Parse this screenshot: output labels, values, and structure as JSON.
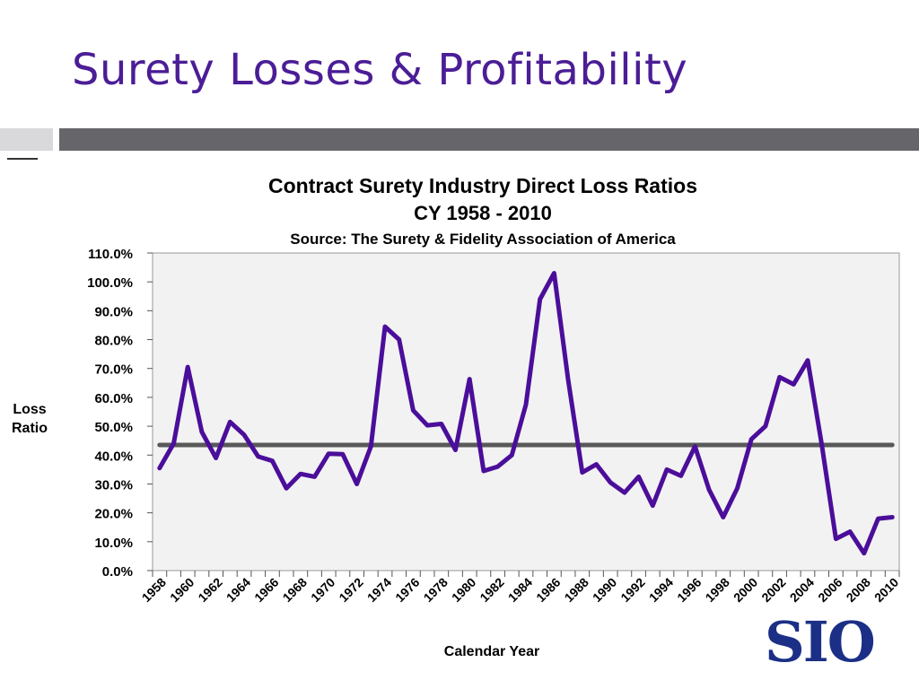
{
  "slide": {
    "title": "Surety Losses & Profitability"
  },
  "logo": {
    "text": "SIO",
    "color": "#1b2f86"
  },
  "colors": {
    "title": "#4b1d96",
    "series": "#4b0e9a",
    "average_line": "#595959",
    "plot_bg": "#f2f2f2"
  },
  "chart_data": {
    "type": "line",
    "title": "Contract Surety Industry Direct Loss Ratios",
    "subtitle": "CY 1958 - 2010",
    "source": "Source: The Surety & Fidelity Association of America",
    "xlabel": "Calendar Year",
    "ylabel": "Loss Ratio",
    "ylim": [
      0,
      110
    ],
    "y_ticks": [
      "0.0%",
      "10.0%",
      "20.0%",
      "30.0%",
      "40.0%",
      "50.0%",
      "60.0%",
      "70.0%",
      "80.0%",
      "90.0%",
      "100.0%",
      "110.0%"
    ],
    "x_tick_labels": [
      "1958",
      "1960",
      "1962",
      "1964",
      "1966",
      "1968",
      "1970",
      "1972",
      "1974",
      "1976",
      "1978",
      "1980",
      "1982",
      "1984",
      "1986",
      "1988",
      "1990",
      "1992",
      "1994",
      "1996",
      "1998",
      "2000",
      "2002",
      "2004",
      "2006",
      "2008",
      "2010"
    ],
    "grid": false,
    "series": [
      {
        "x": [
          1958,
          1959,
          1960,
          1961,
          1962,
          1963,
          1964,
          1965,
          1966,
          1967,
          1968,
          1969,
          1970,
          1971,
          1972,
          1973,
          1974,
          1975,
          1976,
          1977,
          1978,
          1979,
          1980,
          1981,
          1982,
          1983,
          1984,
          1985,
          1986,
          1987,
          1988,
          1989,
          1990,
          1991,
          1992,
          1993,
          1994,
          1995,
          1996,
          1997,
          1998,
          1999,
          2000,
          2001,
          2002,
          2003,
          2004,
          2005,
          2006,
          2007,
          2008,
          2009,
          2010
        ],
        "values": [
          35.5,
          44.0,
          70.5,
          48.0,
          39.0,
          51.5,
          47.0,
          39.5,
          38.0,
          28.5,
          33.5,
          32.5,
          40.5,
          40.3,
          30.0,
          43.0,
          84.5,
          80.0,
          55.5,
          50.3,
          50.8,
          41.8,
          66.3,
          34.5,
          36.0,
          40.0,
          57.5,
          94.0,
          103.0,
          66.0,
          34.0,
          36.8,
          30.5,
          27.0,
          32.5,
          22.5,
          35.0,
          32.8,
          43.0,
          28.0,
          18.5,
          28.5,
          45.5,
          50.0,
          67.0,
          64.5,
          72.8,
          43.5,
          11.0,
          13.5,
          6.0,
          18.0,
          18.5
        ]
      },
      {
        "x": [
          1958,
          2010
        ],
        "values": [
          43.5,
          43.5
        ]
      }
    ]
  }
}
